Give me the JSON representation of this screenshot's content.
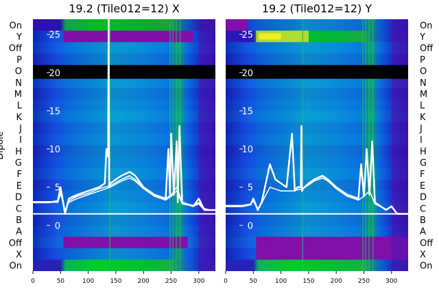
{
  "chart_data": {
    "type": "heatmap",
    "panels": [
      {
        "title": "19.2 (Tile012=12) X",
        "lines": [
          {
            "x": [
              0,
              30,
              45,
              50,
              58,
              65,
              80,
              100,
              120,
              130,
              133,
              136,
              137,
              138,
              140,
              150,
              160,
              175,
              185,
              200,
              220,
              240,
              245,
              248,
              250,
              255,
              260,
              262,
              265,
              270,
              290,
              300,
              310,
              320,
              330
            ],
            "y": [
              3,
              3,
              3.2,
              5,
              1.5,
              3.5,
              4,
              4.5,
              5,
              5.5,
              10,
              9,
              27,
              5,
              5.5,
              6,
              6.5,
              7,
              6.5,
              5,
              4,
              3.5,
              10,
              4,
              12,
              4,
              11,
              3,
              13,
              3,
              2.5,
              3.5,
              2,
              2,
              2
            ]
          },
          {
            "x": [
              0,
              30,
              45,
              50,
              58,
              65,
              80,
              100,
              120,
              140,
              160,
              175,
              185,
              200,
              220,
              240,
              250,
              260,
              270,
              290,
              300,
              310,
              320,
              330
            ],
            "y": [
              3,
              3,
              3.1,
              4.5,
              1.8,
              3.2,
              3.8,
              4.2,
              4.8,
              5.2,
              6,
              6.5,
              6,
              5,
              4,
              3.5,
              4,
              5,
              3,
              2.6,
              3,
              2.2,
              2,
              2
            ]
          },
          {
            "x": [
              0,
              30,
              45,
              50,
              58,
              65,
              80,
              100,
              120,
              140,
              160,
              175,
              185,
              200,
              220,
              240,
              250,
              260,
              270,
              290,
              300,
              310,
              320,
              330
            ],
            "y": [
              3.1,
              3.1,
              3,
              4.2,
              2,
              3,
              3.5,
              4,
              4.5,
              5,
              5.8,
              6.2,
              5.8,
              4.8,
              3.8,
              3.3,
              3.8,
              4.5,
              2.8,
              2.5,
              2.8,
              2,
              2,
              2
            ]
          }
        ]
      },
      {
        "title": "19.2 (Tile012=12) Y",
        "lines": [
          {
            "x": [
              0,
              30,
              45,
              50,
              58,
              65,
              80,
              90,
              100,
              110,
              120,
              125,
              130,
              136,
              137,
              138,
              140,
              150,
              160,
              175,
              185,
              200,
              220,
              240,
              245,
              250,
              255,
              260,
              265,
              270,
              290,
              300,
              310,
              320,
              330
            ],
            "y": [
              2.5,
              2.5,
              2.7,
              3.5,
              2,
              3,
              8,
              6,
              5.5,
              5,
              12,
              4.5,
              5,
              5,
              13,
              4.5,
              4.8,
              5.5,
              6,
              6.5,
              6,
              5,
              4,
              3.5,
              8,
              3.8,
              10,
              4,
              11,
              3,
              2,
              2.5,
              1.5,
              1.5,
              1.5
            ]
          },
          {
            "x": [
              0,
              30,
              45,
              50,
              58,
              65,
              80,
              100,
              120,
              140,
              160,
              175,
              185,
              200,
              220,
              240,
              250,
              260,
              270,
              290,
              300,
              310,
              320,
              330
            ],
            "y": [
              2.6,
              2.6,
              2.8,
              3.2,
              2.1,
              2.9,
              5,
              4.5,
              4.5,
              4.8,
              5.8,
              6.2,
              5.8,
              4.8,
              3.8,
              3.3,
              3.8,
              4.5,
              2.8,
              2.1,
              2.4,
              1.6,
              1.5,
              1.5
            ]
          }
        ]
      }
    ],
    "row_labels": [
      "On",
      "Y",
      "Off",
      "P",
      "O",
      "N",
      "M",
      "L",
      "K",
      "J",
      "I",
      "H",
      "G",
      "F",
      "E",
      "D",
      "C",
      "B",
      "A",
      "Off",
      "X",
      "On"
    ],
    "ylabel": "Dipole",
    "xticks": [
      0,
      50,
      100,
      150,
      200,
      250,
      300
    ],
    "xlim": [
      0,
      330
    ],
    "yticks": [
      0,
      5,
      10,
      15,
      20,
      25
    ],
    "ylim": [
      -6,
      27
    ]
  }
}
